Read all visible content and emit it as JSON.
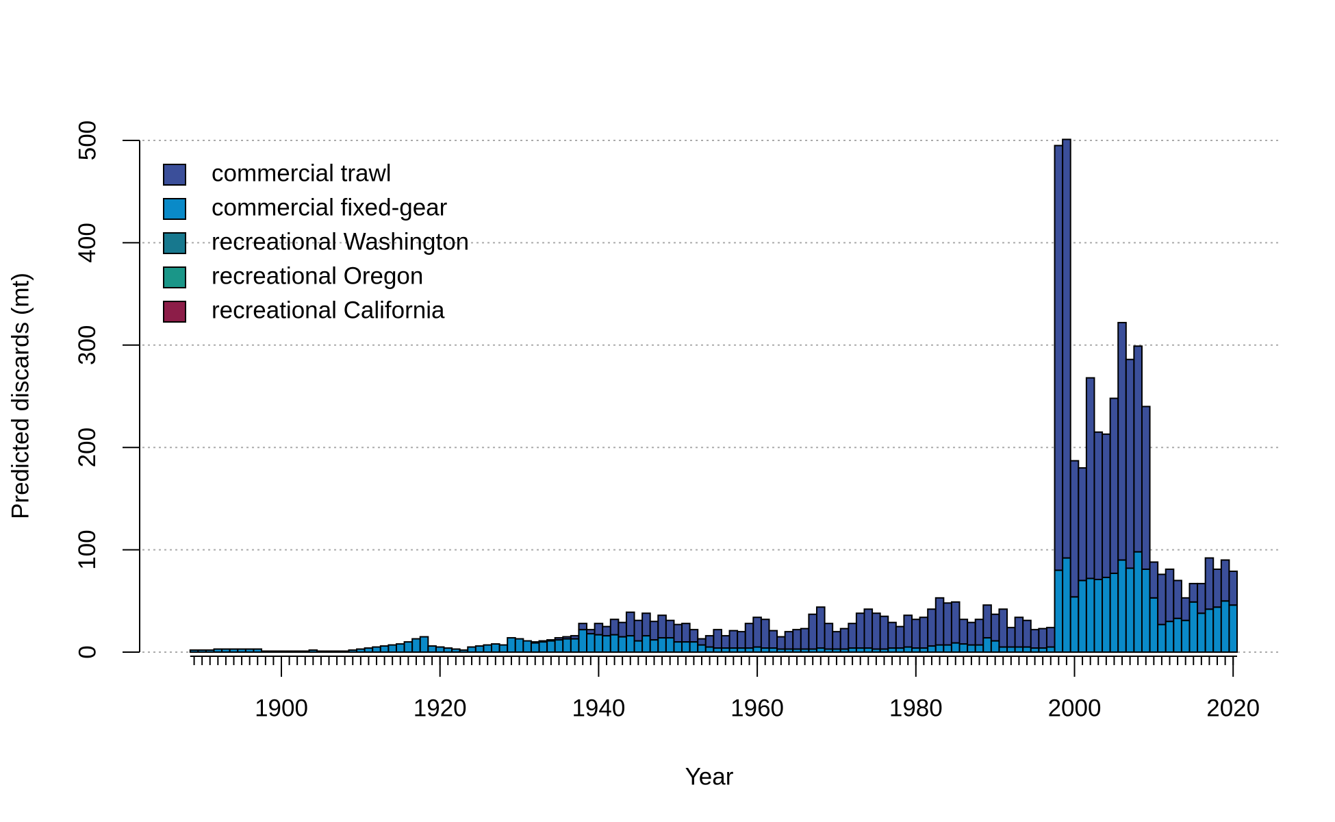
{
  "chart_data": {
    "type": "stacked_bar",
    "xlabel": "Year",
    "ylabel": "Predicted discards (mt)",
    "x": [
      1889,
      1890,
      1891,
      1892,
      1893,
      1894,
      1895,
      1896,
      1897,
      1898,
      1899,
      1900,
      1901,
      1902,
      1903,
      1904,
      1905,
      1906,
      1907,
      1908,
      1909,
      1910,
      1911,
      1912,
      1913,
      1914,
      1915,
      1916,
      1917,
      1918,
      1919,
      1920,
      1921,
      1922,
      1923,
      1924,
      1925,
      1926,
      1927,
      1928,
      1929,
      1930,
      1931,
      1932,
      1933,
      1934,
      1935,
      1936,
      1937,
      1938,
      1939,
      1940,
      1941,
      1942,
      1943,
      1944,
      1945,
      1946,
      1947,
      1948,
      1949,
      1950,
      1951,
      1952,
      1953,
      1954,
      1955,
      1956,
      1957,
      1958,
      1959,
      1960,
      1961,
      1962,
      1963,
      1964,
      1965,
      1966,
      1967,
      1968,
      1969,
      1970,
      1971,
      1972,
      1973,
      1974,
      1975,
      1976,
      1977,
      1978,
      1979,
      1980,
      1981,
      1982,
      1983,
      1984,
      1985,
      1986,
      1987,
      1988,
      1989,
      1990,
      1991,
      1992,
      1993,
      1994,
      1995,
      1996,
      1997,
      1998,
      1999,
      2000,
      2001,
      2002,
      2003,
      2004,
      2005,
      2006,
      2007,
      2008,
      2009,
      2010,
      2011,
      2012,
      2013,
      2014,
      2015,
      2016,
      2017,
      2018,
      2019,
      2020
    ],
    "series": [
      {
        "name": "commercial trawl",
        "color": "#3b4f9a",
        "values": [
          0,
          0,
          0,
          0,
          0,
          0,
          0,
          0,
          0,
          0,
          0,
          0,
          0,
          0,
          0,
          0,
          0,
          0,
          0,
          0,
          0,
          0,
          0,
          0,
          0,
          0,
          0,
          0,
          0,
          0,
          0,
          0,
          0,
          0,
          0,
          0,
          0,
          0,
          0,
          0,
          0,
          0,
          0,
          1,
          1,
          1,
          2,
          2,
          3,
          6,
          4,
          11,
          9,
          15,
          14,
          23,
          20,
          22,
          18,
          22,
          17,
          17,
          18,
          12,
          6,
          11,
          18,
          12,
          17,
          16,
          24,
          29,
          28,
          17,
          12,
          17,
          19,
          20,
          34,
          40,
          25,
          17,
          20,
          24,
          34,
          38,
          35,
          32,
          25,
          21,
          31,
          28,
          30,
          36,
          46,
          41,
          40,
          24,
          22,
          25,
          32,
          26,
          37,
          19,
          29,
          26,
          18,
          19,
          19,
          415,
          409,
          133,
          110,
          196,
          144,
          140,
          171,
          232,
          204,
          201,
          159,
          35,
          49,
          51,
          37,
          22,
          18,
          29,
          50,
          37,
          40,
          33
        ]
      },
      {
        "name": "commercial fixed-gear",
        "color": "#0a8ac8",
        "values": [
          2,
          2,
          2,
          3,
          3,
          3,
          3,
          3,
          3,
          1,
          1,
          1,
          1,
          1,
          1,
          2,
          1,
          1,
          1,
          1,
          2,
          3,
          4,
          5,
          6,
          7,
          8,
          10,
          13,
          15,
          6,
          5,
          4,
          3,
          2,
          5,
          6,
          7,
          8,
          7,
          14,
          13,
          11,
          9,
          10,
          11,
          12,
          13,
          13,
          22,
          18,
          17,
          16,
          17,
          15,
          16,
          11,
          16,
          12,
          14,
          14,
          10,
          10,
          10,
          7,
          5,
          4,
          4,
          4,
          4,
          4,
          5,
          4,
          4,
          3,
          3,
          3,
          3,
          3,
          4,
          3,
          3,
          3,
          4,
          4,
          4,
          3,
          3,
          4,
          4,
          5,
          4,
          4,
          6,
          7,
          7,
          9,
          8,
          7,
          7,
          14,
          11,
          5,
          5,
          5,
          5,
          4,
          4,
          5,
          80,
          92,
          54,
          70,
          72,
          71,
          73,
          77,
          90,
          82,
          98,
          81,
          53,
          27,
          30,
          33,
          31,
          49,
          38,
          42,
          44,
          50,
          46
        ]
      },
      {
        "name": "recreational Washington",
        "color": "#17788e",
        "values": [
          0,
          0,
          0,
          0,
          0,
          0,
          0,
          0,
          0,
          0,
          0,
          0,
          0,
          0,
          0,
          0,
          0,
          0,
          0,
          0,
          0,
          0,
          0,
          0,
          0,
          0,
          0,
          0,
          0,
          0,
          0,
          0,
          0,
          0,
          0,
          0,
          0,
          0,
          0,
          0,
          0,
          0,
          0,
          0,
          0,
          0,
          0,
          0,
          0,
          0,
          0,
          0,
          0,
          0,
          0,
          0,
          0,
          0,
          0,
          0,
          0,
          0,
          0,
          0,
          0,
          0,
          0,
          0,
          0,
          0,
          0,
          0,
          0,
          0,
          0,
          0,
          0,
          0,
          0,
          0,
          0,
          0,
          0,
          0,
          0,
          0,
          0,
          0,
          0,
          0,
          0,
          0,
          0,
          0,
          0,
          0,
          0,
          0,
          0,
          0,
          0,
          0,
          0,
          0,
          0,
          0,
          0,
          0,
          0,
          0,
          0,
          0,
          0,
          0,
          0,
          0,
          0,
          0,
          0,
          0,
          0,
          0,
          0,
          0,
          0,
          0,
          0,
          0,
          0,
          0,
          0,
          0
        ]
      },
      {
        "name": "recreational Oregon",
        "color": "#1a9688",
        "values": [
          0,
          0,
          0,
          0,
          0,
          0,
          0,
          0,
          0,
          0,
          0,
          0,
          0,
          0,
          0,
          0,
          0,
          0,
          0,
          0,
          0,
          0,
          0,
          0,
          0,
          0,
          0,
          0,
          0,
          0,
          0,
          0,
          0,
          0,
          0,
          0,
          0,
          0,
          0,
          0,
          0,
          0,
          0,
          0,
          0,
          0,
          0,
          0,
          0,
          0,
          0,
          0,
          0,
          0,
          0,
          0,
          0,
          0,
          0,
          0,
          0,
          0,
          0,
          0,
          0,
          0,
          0,
          0,
          0,
          0,
          0,
          0,
          0,
          0,
          0,
          0,
          0,
          0,
          0,
          0,
          0,
          0,
          0,
          0,
          0,
          0,
          0,
          0,
          0,
          0,
          0,
          0,
          0,
          0,
          0,
          0,
          0,
          0,
          0,
          0,
          0,
          0,
          0,
          0,
          0,
          0,
          0,
          0,
          0,
          0,
          0,
          0,
          0,
          0,
          0,
          0,
          0,
          0,
          0,
          0,
          0,
          0,
          0,
          0,
          0,
          0,
          0,
          0,
          0,
          0,
          0,
          0
        ]
      },
      {
        "name": "recreational California",
        "color": "#8c1d48",
        "values": [
          0,
          0,
          0,
          0,
          0,
          0,
          0,
          0,
          0,
          0,
          0,
          0,
          0,
          0,
          0,
          0,
          0,
          0,
          0,
          0,
          0,
          0,
          0,
          0,
          0,
          0,
          0,
          0,
          0,
          0,
          0,
          0,
          0,
          0,
          0,
          0,
          0,
          0,
          0,
          0,
          0,
          0,
          0,
          0,
          0,
          0,
          0,
          0,
          0,
          0,
          0,
          0,
          0,
          0,
          0,
          0,
          0,
          0,
          0,
          0,
          0,
          0,
          0,
          0,
          0,
          0,
          0,
          0,
          0,
          0,
          0,
          0,
          0,
          0,
          0,
          0,
          0,
          0,
          0,
          0,
          0,
          0,
          0,
          0,
          0,
          0,
          0,
          0,
          0,
          0,
          0,
          0,
          0,
          0,
          0,
          0,
          0,
          0,
          0,
          0,
          0,
          0,
          0,
          0,
          0,
          0,
          0,
          0,
          0,
          0,
          0,
          0,
          0,
          0,
          0,
          0,
          0,
          0,
          0,
          0,
          0,
          0,
          0,
          0,
          0,
          0,
          0,
          0,
          0,
          0,
          0,
          0
        ]
      }
    ],
    "xlim": [
      1888.5,
      2020.5
    ],
    "xticks": [
      1900,
      1920,
      1940,
      1960,
      1980,
      2000,
      2020
    ],
    "ylim": [
      0,
      500
    ],
    "yticks": [
      0,
      100,
      200,
      300,
      400,
      500
    ],
    "grid": true,
    "legend": "topleft"
  }
}
